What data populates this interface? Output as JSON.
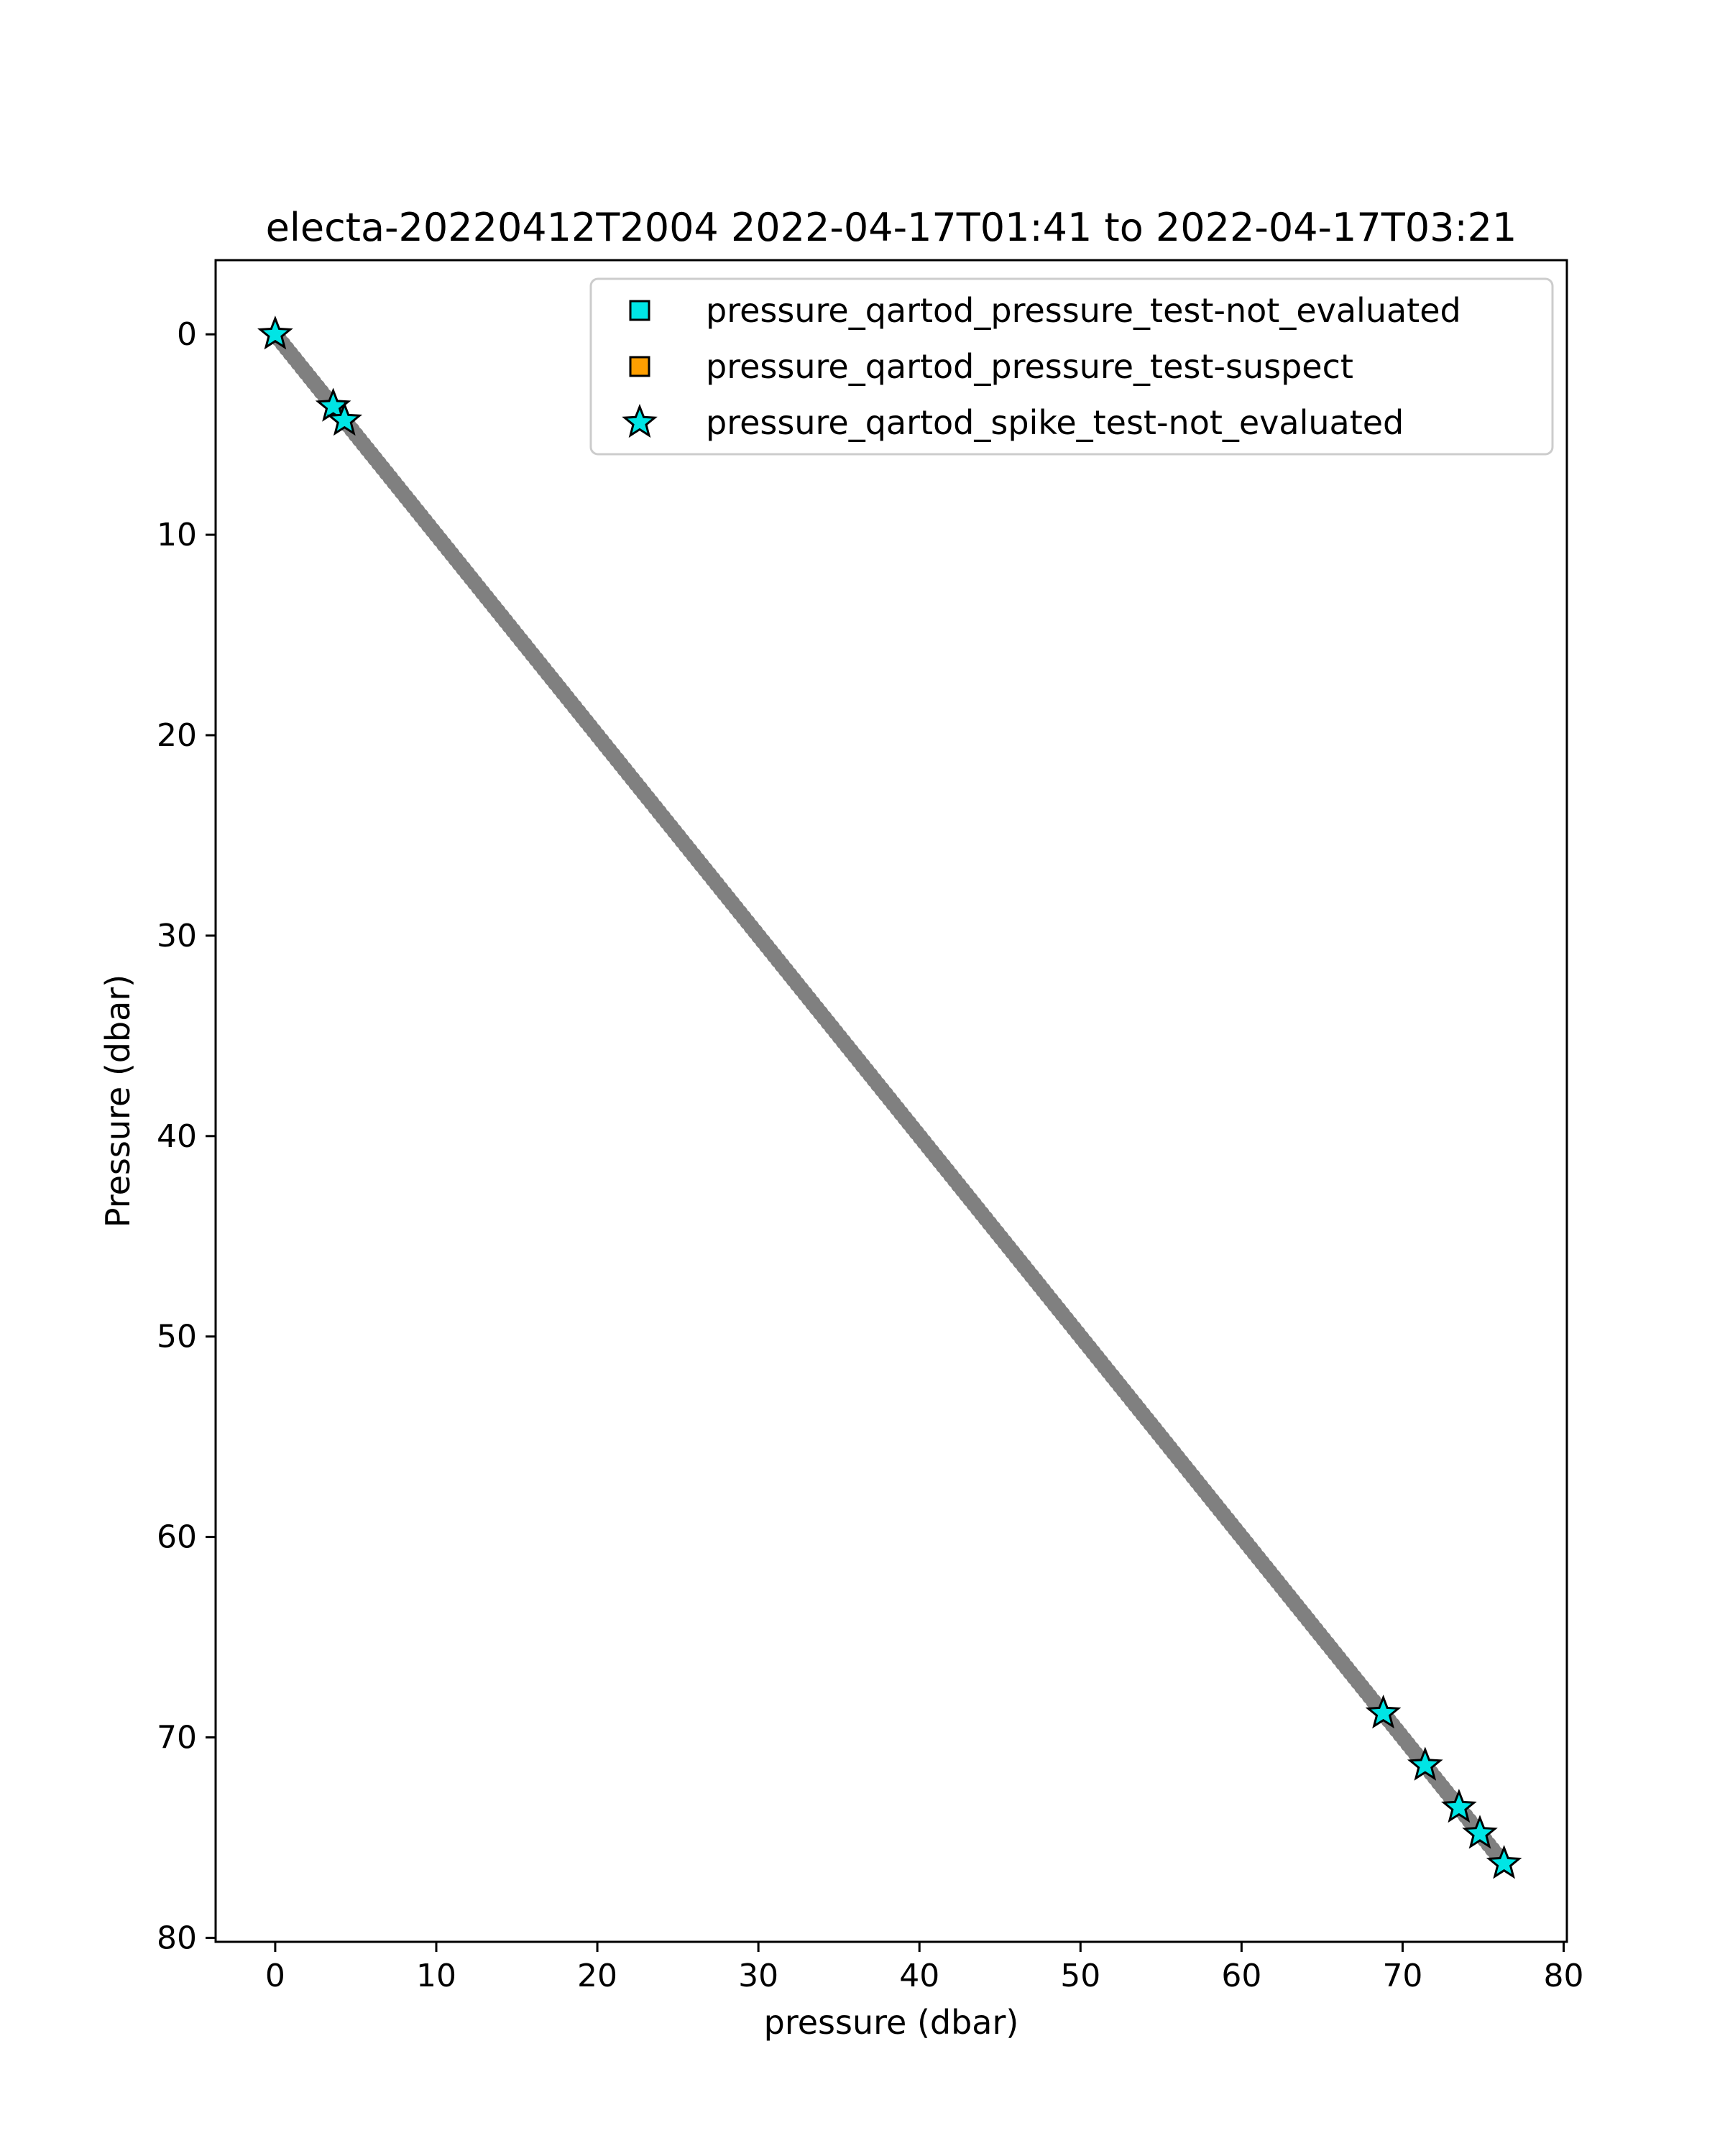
{
  "chart_data": {
    "type": "scatter",
    "title": "electa-20220412T2004 2022-04-17T01:41 to 2022-04-17T03:21",
    "xlabel": "pressure (dbar)",
    "ylabel": "Pressure (dbar)",
    "xlim": [
      -3.7,
      80.2
    ],
    "ylim": [
      80.2,
      -3.7
    ],
    "y_inverted": true,
    "grid": false,
    "legend_position": "upper-right",
    "x_ticks": [
      0,
      10,
      20,
      30,
      40,
      50,
      60,
      70,
      80
    ],
    "y_ticks": [
      0,
      10,
      20,
      30,
      40,
      50,
      60,
      70,
      80
    ],
    "series": [
      {
        "name": "",
        "marker": "circle",
        "color": "#808080",
        "x_range": [
          0,
          76.3
        ],
        "y_range": [
          0,
          76.3
        ],
        "description_relation": "y equals x, dense profile"
      },
      {
        "name": "pressure_qartod_pressure_test-not_evaluated",
        "marker": "square",
        "color": "#00e5e5",
        "x": [],
        "y": []
      },
      {
        "name": "pressure_qartod_pressure_test-suspect",
        "marker": "square",
        "color": "#ff9f00",
        "x": [],
        "y": []
      },
      {
        "name": "pressure_qartod_spike_test-not_evaluated",
        "marker": "star",
        "color": "#00e5e5",
        "x": [
          0.0,
          3.6,
          4.3,
          68.8,
          71.4,
          73.5,
          74.8,
          76.3
        ],
        "y": [
          0.0,
          3.6,
          4.3,
          68.8,
          71.4,
          73.5,
          74.8,
          76.3
        ]
      }
    ]
  }
}
